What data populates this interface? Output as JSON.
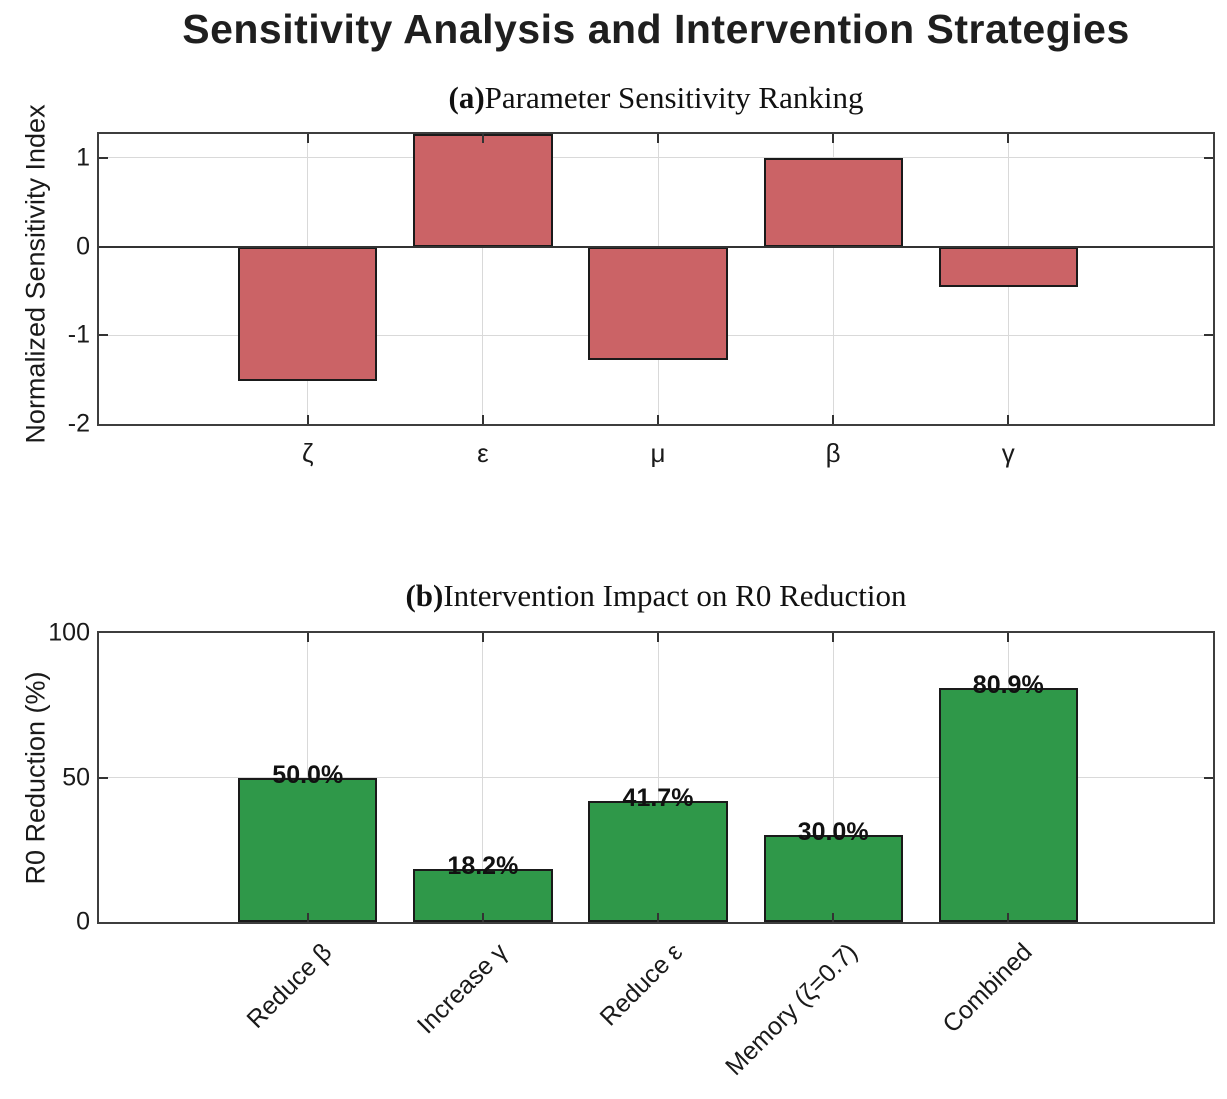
{
  "figure": {
    "title": "Sensitivity Analysis and Intervention Strategies"
  },
  "colors": {
    "sensitivity_bar_fill": "#CB6366",
    "intervention_bar_fill": "#2F9849",
    "bar_edge": "#1a1a1a",
    "axis_box": "#3e3e3e",
    "gridline": "#d9d9d9",
    "zero_line": "#333333",
    "text": "#1a1a1a"
  },
  "chart_data": [
    {
      "id": "sensitivity",
      "type": "bar",
      "title_prefix": "(a)",
      "title": "Parameter Sensitivity Ranking",
      "ylabel": "Normalized Sensitivity Index",
      "xlabel": "",
      "categories": [
        "ζ",
        "ε",
        "μ",
        "β",
        "γ"
      ],
      "values": [
        -1.52,
        1.27,
        -1.28,
        1.0,
        -0.45
      ],
      "ylim": [
        -2,
        1.27
      ],
      "yticks": [
        1,
        0,
        -1,
        -2
      ],
      "ytick_labels": [
        "1",
        "0",
        "-1",
        "-2"
      ],
      "grid": true,
      "legend": "none",
      "note": "epsilon bar is clipped at the top axis limit; zero reference line drawn across plot"
    },
    {
      "id": "intervention",
      "type": "bar",
      "title_prefix": "(b)",
      "title": "Intervention Impact on R0 Reduction",
      "ylabel": "R0 Reduction (%)",
      "xlabel": "",
      "categories": [
        "Reduce β",
        "Increase γ",
        "Reduce ε",
        "Memory (ζ=0.7)",
        "Combined"
      ],
      "values": [
        50.0,
        18.2,
        41.7,
        30.0,
        80.9
      ],
      "bar_labels": [
        "50.0%",
        "18.2%",
        "41.7%",
        "30.0%",
        "80.9%"
      ],
      "ylim": [
        0,
        100
      ],
      "yticks": [
        0,
        50,
        100
      ],
      "ytick_labels": [
        "0",
        "50",
        "100"
      ],
      "grid": true,
      "legend": "none",
      "note": "x tick labels rotated 45 degrees"
    }
  ]
}
